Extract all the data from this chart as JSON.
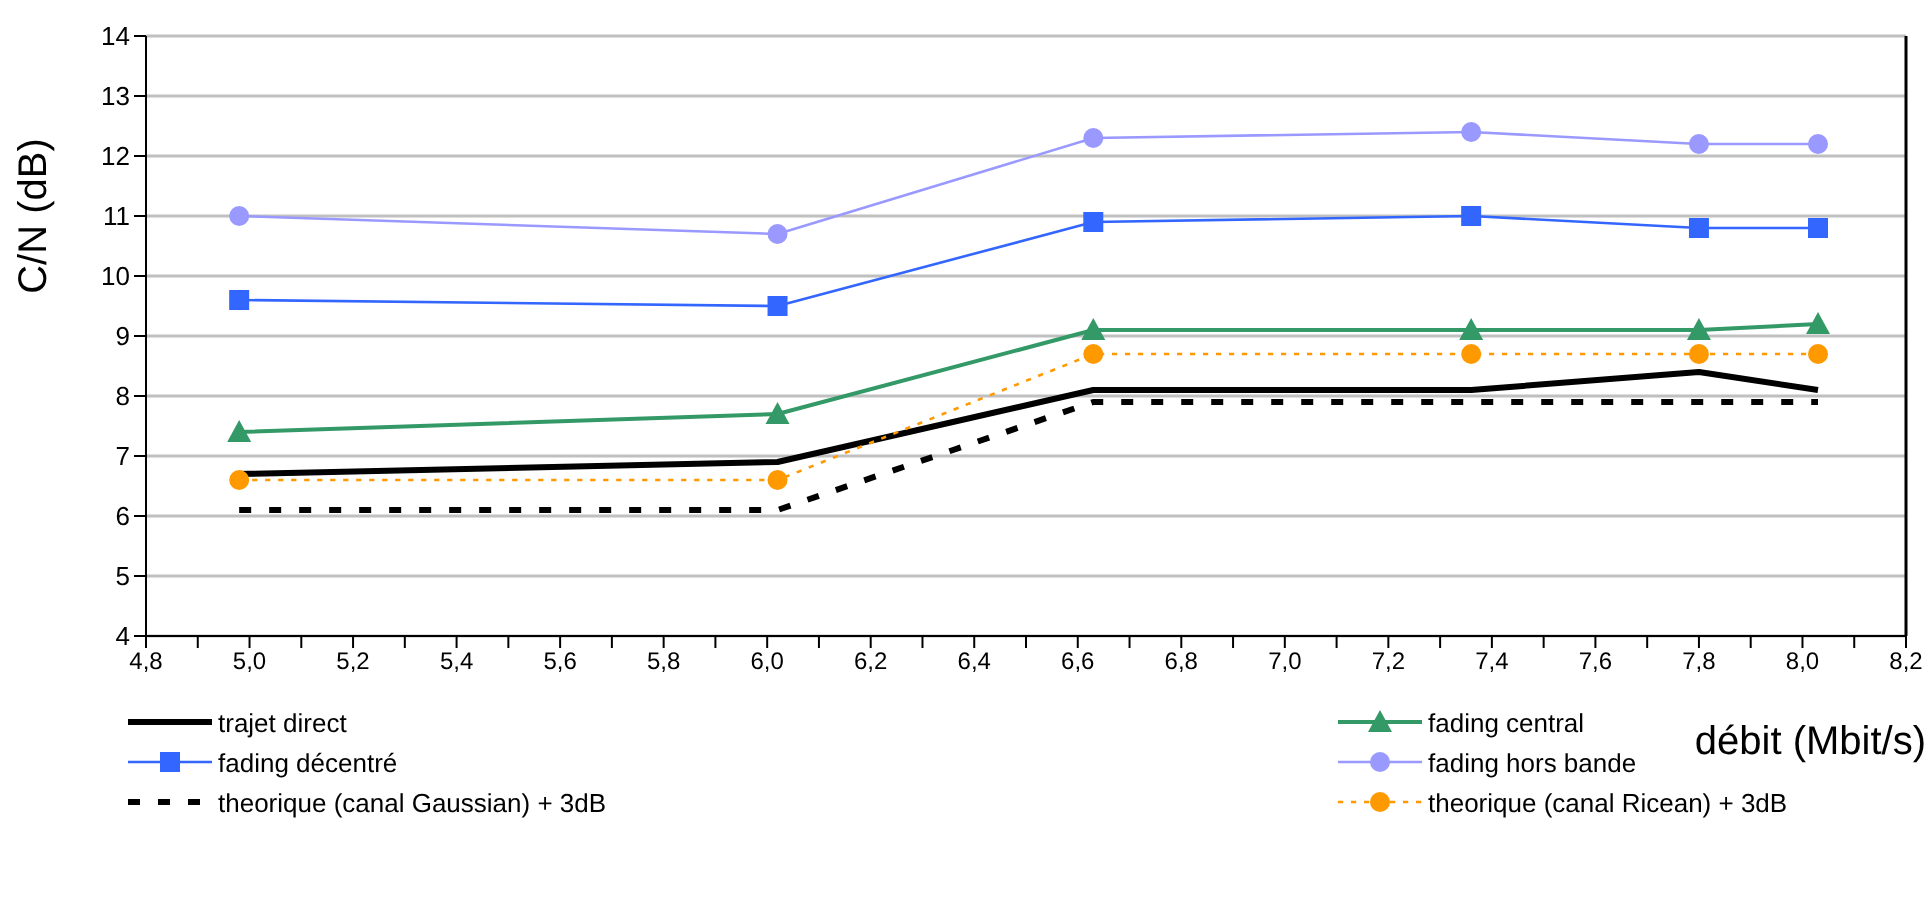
{
  "chart_data": {
    "type": "line",
    "xlabel": "débit (Mbit/s)",
    "ylabel": "C/N (dB)",
    "x": [
      4.98,
      6.02,
      6.63,
      7.36,
      7.8,
      8.03
    ],
    "series": [
      {
        "name": "trajet direct",
        "color": "#000000",
        "values": [
          6.7,
          6.9,
          8.1,
          8.1,
          8.4,
          8.1
        ],
        "marker": "none",
        "line_style": "solid"
      },
      {
        "name": "fading central",
        "color": "#339966",
        "values": [
          7.4,
          7.7,
          9.1,
          9.1,
          9.1,
          9.2
        ],
        "marker": "triangle",
        "line_style": "solid"
      },
      {
        "name": "fading décentré",
        "color": "#3366ff",
        "values": [
          9.6,
          9.5,
          10.9,
          11.0,
          10.8,
          10.8
        ],
        "marker": "square",
        "line_style": "solid"
      },
      {
        "name": "fading hors bande",
        "color": "#9999ff",
        "values": [
          11.0,
          10.7,
          12.3,
          12.4,
          12.2,
          12.2
        ],
        "marker": "circle",
        "line_style": "solid"
      },
      {
        "name": "theorique (canal Gaussian) + 3dB",
        "color": "#000000",
        "values": [
          6.1,
          6.1,
          7.9,
          7.9,
          7.9,
          7.9
        ],
        "marker": "none",
        "line_style": "dashed"
      },
      {
        "name": "theorique (canal Ricean) + 3dB",
        "color": "#ff9900",
        "values": [
          6.6,
          6.6,
          8.7,
          8.7,
          8.7,
          8.7
        ],
        "marker": "circle",
        "line_style": "dashed"
      }
    ],
    "xlim": [
      4.8,
      8.2
    ],
    "xticks": [
      {
        "value": 4.8,
        "label": "4,8"
      },
      {
        "value": 4.9,
        "label": null
      },
      {
        "value": 5.0,
        "label": "5,0"
      },
      {
        "value": 5.1,
        "label": null
      },
      {
        "value": 5.2,
        "label": "5,2"
      },
      {
        "value": 5.3,
        "label": null
      },
      {
        "value": 5.4,
        "label": "5,4"
      },
      {
        "value": 5.5,
        "label": null
      },
      {
        "value": 5.6,
        "label": "5,6"
      },
      {
        "value": 5.7,
        "label": null
      },
      {
        "value": 5.8,
        "label": "5,8"
      },
      {
        "value": 5.9,
        "label": null
      },
      {
        "value": 6.0,
        "label": "6,0"
      },
      {
        "value": 6.1,
        "label": null
      },
      {
        "value": 6.2,
        "label": "6,2"
      },
      {
        "value": 6.3,
        "label": null
      },
      {
        "value": 6.4,
        "label": "6,4"
      },
      {
        "value": 6.5,
        "label": null
      },
      {
        "value": 6.6,
        "label": "6,6"
      },
      {
        "value": 6.7,
        "label": null
      },
      {
        "value": 6.8,
        "label": "6,8"
      },
      {
        "value": 6.9,
        "label": null
      },
      {
        "value": 7.0,
        "label": "7,0"
      },
      {
        "value": 7.1,
        "label": null
      },
      {
        "value": 7.2,
        "label": "7,2"
      },
      {
        "value": 7.3,
        "label": null
      },
      {
        "value": 7.4,
        "label": "7,4"
      },
      {
        "value": 7.5,
        "label": null
      },
      {
        "value": 7.6,
        "label": "7,6"
      },
      {
        "value": 7.7,
        "label": null
      },
      {
        "value": 7.8,
        "label": "7,8"
      },
      {
        "value": 7.9,
        "label": null
      },
      {
        "value": 8.0,
        "label": "8,0"
      },
      {
        "value": 8.1,
        "label": null
      },
      {
        "value": 8.2,
        "label": "8,2"
      }
    ],
    "ylim": [
      4,
      14
    ],
    "yticks": [
      4,
      5,
      6,
      7,
      8,
      9,
      10,
      11,
      12,
      13,
      14
    ],
    "grid": "y",
    "legend": "bottom"
  }
}
